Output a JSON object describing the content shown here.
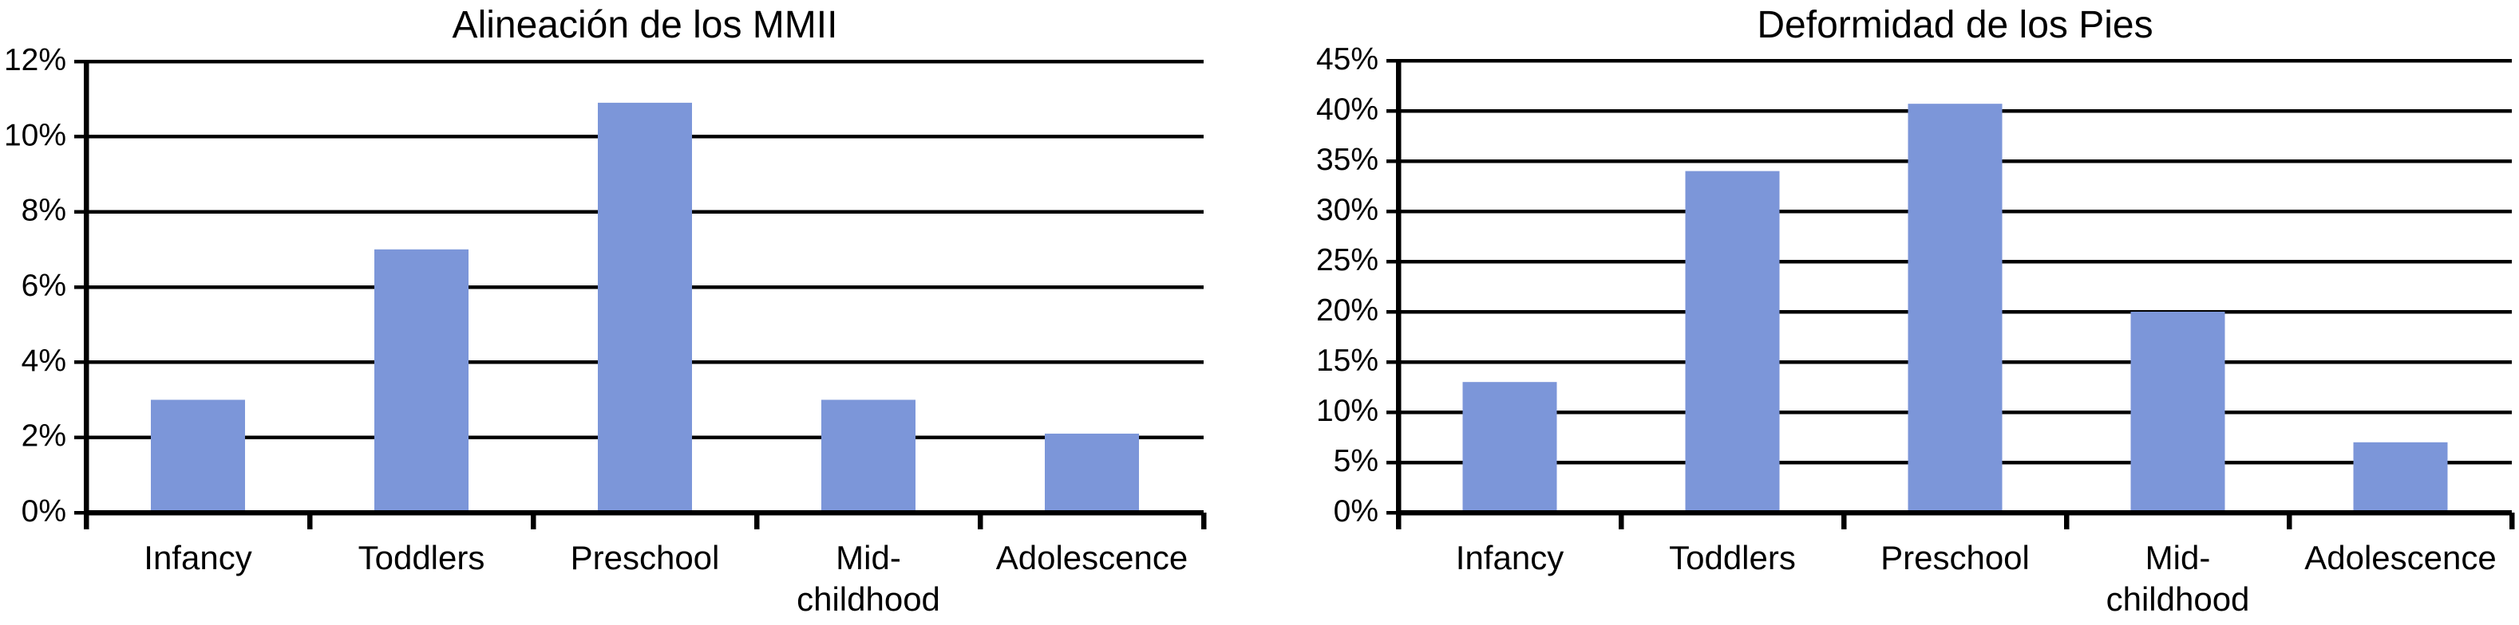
{
  "figure_background": "#ffffff",
  "line_color": "#000000",
  "text_color": "#000000",
  "chart_data": [
    {
      "type": "bar",
      "title": "Alineación de los MMII",
      "categories": [
        "Infancy",
        "Toddlers",
        "Preschool",
        "Mid-childhood",
        "Adolescence"
      ],
      "category_label_lines": [
        [
          "Infancy"
        ],
        [
          "Toddlers"
        ],
        [
          "Preschool"
        ],
        [
          "Mid-",
          "childhood"
        ],
        [
          "Adolescence"
        ]
      ],
      "values": [
        3,
        7,
        10.9,
        3,
        2.1
      ],
      "unit": "%",
      "xlabel": "",
      "ylabel": "",
      "ylim": [
        0,
        12
      ],
      "ytick_step": 2,
      "ytick_labels": [
        "12%",
        "10%",
        "8%",
        "6%",
        "4%",
        "2%",
        "0%"
      ],
      "grid": true,
      "legend": null,
      "bar_color": "#7C96D9"
    },
    {
      "type": "bar",
      "title": "Deformidad de los Pies",
      "categories": [
        "Infancy",
        "Toddlers",
        "Preschool",
        "Mid-childhood",
        "Adolescence"
      ],
      "category_label_lines": [
        [
          "Infancy"
        ],
        [
          "Toddlers"
        ],
        [
          "Preschool"
        ],
        [
          "Mid-",
          "childhood"
        ],
        [
          "Adolescence"
        ]
      ],
      "values": [
        13,
        34,
        40.7,
        20,
        7
      ],
      "unit": "%",
      "xlabel": "",
      "ylabel": "",
      "ylim": [
        0,
        45
      ],
      "ytick_step": 5,
      "ytick_labels": [
        "45%",
        "40%",
        "35%",
        "30%",
        "25%",
        "20%",
        "15%",
        "10%",
        "5%",
        "0%"
      ],
      "grid": true,
      "legend": null,
      "bar_color": "#7C96D9"
    }
  ]
}
